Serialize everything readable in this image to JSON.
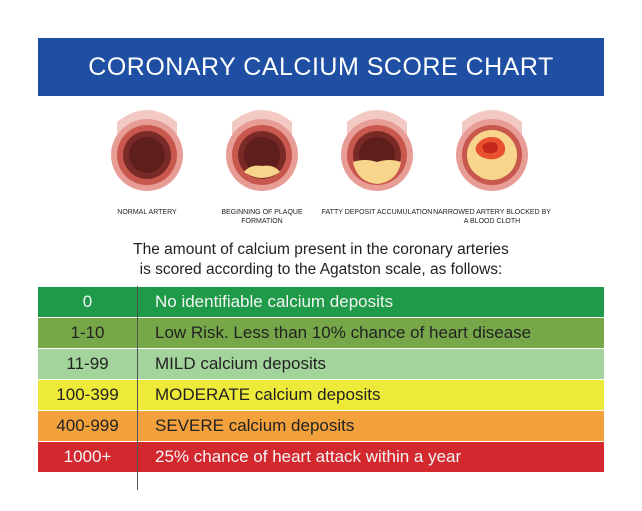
{
  "header": {
    "title": "CORONARY CALCIUM SCORE CHART"
  },
  "arteries": [
    {
      "label": "NORMAL ARTERY"
    },
    {
      "label": "BEGINNING OF PLAQUE FORMATION"
    },
    {
      "label": "FATTY DEPOSIT ACCUMULATION"
    },
    {
      "label": "NARROWED ARTERY BLOCKED BY A BLOOD CLOTH"
    }
  ],
  "intro": {
    "line1": "The amount of calcium present in the coronary arteries",
    "line2": "is scored according to the Agatston scale, as follows:"
  },
  "scale": [
    {
      "score": "0",
      "description": "No identifiable calcium deposits",
      "color": "#1f9a48"
    },
    {
      "score": "1-10",
      "description": "Low Risk. Less than 10% chance of heart disease",
      "color": "#76a84a"
    },
    {
      "score": "11-99",
      "description": "MILD calcium deposits",
      "color": "#a3d49c"
    },
    {
      "score": "100-399",
      "description": "MODERATE calcium deposits",
      "color": "#eeea3a"
    },
    {
      "score": "400-999",
      "description": "SEVERE calcium deposits",
      "color": "#f2a13c"
    },
    {
      "score": "1000+",
      "description": "25% chance of heart attack within a year",
      "color": "#d4282f"
    }
  ]
}
